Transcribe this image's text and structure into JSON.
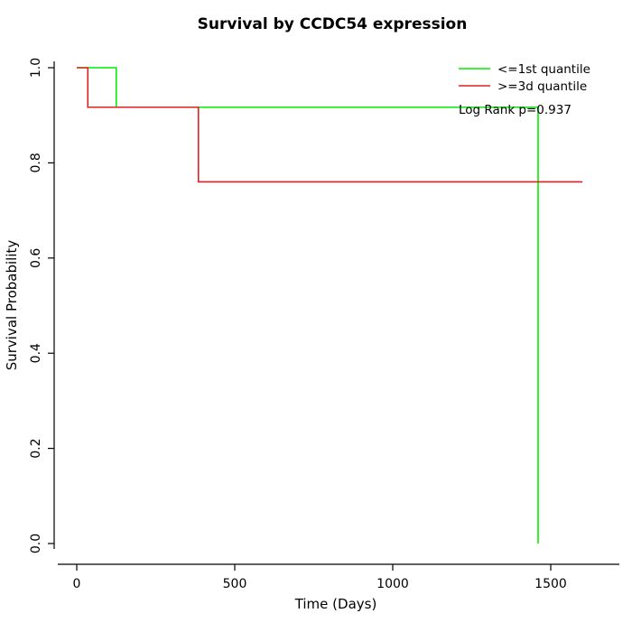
{
  "chart_data": {
    "type": "line",
    "subtype": "kaplan-meier-step",
    "title": "Survival by CCDC54 expression",
    "xlabel": "Time (Days)",
    "ylabel": "Survival Probability",
    "xlim": [
      0,
      1600
    ],
    "ylim": [
      0.0,
      1.0
    ],
    "x_ticks": [
      0,
      500,
      1000,
      1500
    ],
    "y_ticks": [
      "0.0",
      "0.2",
      "0.4",
      "0.6",
      "0.8",
      "1.0"
    ],
    "grid": false,
    "legend_position": "top-right",
    "annotation": "Log Rank p=0.937",
    "series": [
      {
        "name": "<=1st quantile",
        "color": "#00ee00",
        "points": [
          [
            0,
            1.0
          ],
          [
            125,
            1.0
          ],
          [
            125,
            0.917
          ],
          [
            1460,
            0.917
          ],
          [
            1460,
            0.0
          ]
        ]
      },
      {
        "name": ">=3d quantile",
        "color": "#e02020",
        "points": [
          [
            0,
            1.0
          ],
          [
            35,
            1.0
          ],
          [
            35,
            0.917
          ],
          [
            385,
            0.917
          ],
          [
            385,
            0.76
          ],
          [
            1600,
            0.76
          ]
        ]
      }
    ]
  }
}
